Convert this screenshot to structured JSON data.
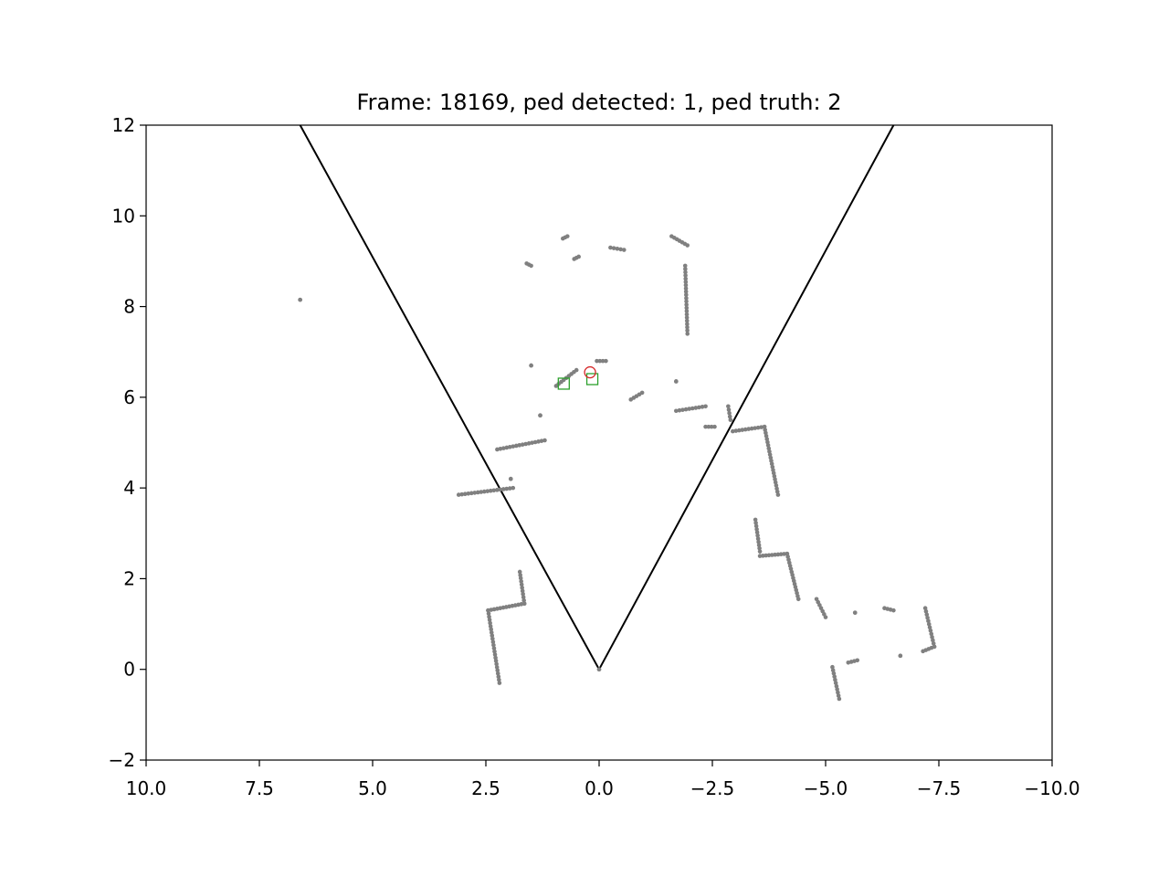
{
  "chart_data": {
    "type": "scatter",
    "title": "Frame: 18169, ped detected: 1, ped truth: 2",
    "xlabel": "",
    "ylabel": "",
    "xlim": [
      10.0,
      -10.0
    ],
    "ylim": [
      -2,
      12
    ],
    "x_ticks": [
      "10.0",
      "7.5",
      "5.0",
      "2.5",
      "0.0",
      "−2.5",
      "−5.0",
      "−7.5",
      "−10.0"
    ],
    "y_ticks": [
      "−2",
      "0",
      "2",
      "4",
      "6",
      "8",
      "10",
      "12"
    ],
    "grid": false,
    "colors": {
      "points": "#808080",
      "fov": "#000000",
      "detected": "#d62728",
      "truth": "#2ca02c"
    },
    "fov_lines": [
      {
        "x": [
          6.6,
          0.0,
          -6.5
        ],
        "y": [
          12,
          0,
          12
        ]
      }
    ],
    "series": [
      {
        "marker": "dot",
        "segments": [
          {
            "x": [
              6.6,
              6.6
            ],
            "y": [
              8.15,
              8.15
            ]
          },
          {
            "x": [
              1.6,
              1.5
            ],
            "y": [
              8.95,
              8.9
            ]
          },
          {
            "x": [
              0.8,
              0.7
            ],
            "y": [
              9.5,
              9.55
            ]
          },
          {
            "x": [
              0.55,
              0.45
            ],
            "y": [
              9.05,
              9.1
            ]
          },
          {
            "x": [
              -0.25,
              -0.55
            ],
            "y": [
              9.3,
              9.25
            ]
          },
          {
            "x": [
              -1.6,
              -1.95
            ],
            "y": [
              9.55,
              9.35
            ]
          },
          {
            "x": [
              -1.9,
              -1.95
            ],
            "y": [
              8.9,
              7.4
            ]
          },
          {
            "x": [
              1.5,
              1.5
            ],
            "y": [
              6.7,
              6.7
            ]
          },
          {
            "x": [
              0.95,
              0.5
            ],
            "y": [
              6.25,
              6.6
            ]
          },
          {
            "x": [
              0.05,
              -0.15
            ],
            "y": [
              6.8,
              6.8
            ]
          },
          {
            "x": [
              -0.7,
              -0.95
            ],
            "y": [
              5.95,
              6.1
            ]
          },
          {
            "x": [
              -1.7,
              -1.7
            ],
            "y": [
              6.35,
              6.35
            ]
          },
          {
            "x": [
              -1.7,
              -2.35
            ],
            "y": [
              5.7,
              5.8
            ]
          },
          {
            "x": [
              -2.35,
              -2.55
            ],
            "y": [
              5.35,
              5.35
            ]
          },
          {
            "x": [
              -2.85,
              -2.9
            ],
            "y": [
              5.8,
              5.5
            ]
          },
          {
            "x": [
              1.3,
              1.3
            ],
            "y": [
              5.6,
              5.6
            ]
          },
          {
            "x": [
              2.25,
              1.2
            ],
            "y": [
              4.85,
              5.05
            ]
          },
          {
            "x": [
              3.1,
              1.9
            ],
            "y": [
              3.85,
              4.0
            ]
          },
          {
            "x": [
              1.95,
              1.95
            ],
            "y": [
              4.2,
              4.2
            ]
          },
          {
            "x": [
              -2.95,
              -3.65
            ],
            "y": [
              5.25,
              5.35
            ]
          },
          {
            "x": [
              -3.65,
              -3.95
            ],
            "y": [
              5.35,
              3.85
            ]
          },
          {
            "x": [
              -3.45,
              -3.55
            ],
            "y": [
              3.3,
              2.6
            ]
          },
          {
            "x": [
              -3.55,
              -4.15
            ],
            "y": [
              2.5,
              2.55
            ]
          },
          {
            "x": [
              -4.15,
              -4.4
            ],
            "y": [
              2.55,
              1.55
            ]
          },
          {
            "x": [
              -4.8,
              -5.0
            ],
            "y": [
              1.55,
              1.15
            ]
          },
          {
            "x": [
              -5.65,
              -5.65
            ],
            "y": [
              1.25,
              1.25
            ]
          },
          {
            "x": [
              -6.3,
              -6.5
            ],
            "y": [
              1.35,
              1.3
            ]
          },
          {
            "x": [
              -7.2,
              -7.4
            ],
            "y": [
              1.35,
              0.5
            ]
          },
          {
            "x": [
              -7.4,
              -7.15
            ],
            "y": [
              0.5,
              0.4
            ]
          },
          {
            "x": [
              -6.65,
              -6.65
            ],
            "y": [
              0.3,
              0.3
            ]
          },
          {
            "x": [
              -5.5,
              -5.7
            ],
            "y": [
              0.15,
              0.2
            ]
          },
          {
            "x": [
              -5.15,
              -5.3
            ],
            "y": [
              0.05,
              -0.65
            ]
          },
          {
            "x": [
              1.75,
              1.65
            ],
            "y": [
              2.15,
              1.45
            ]
          },
          {
            "x": [
              1.65,
              2.45
            ],
            "y": [
              1.45,
              1.3
            ]
          },
          {
            "x": [
              2.45,
              2.2
            ],
            "y": [
              1.3,
              -0.3
            ]
          },
          {
            "x": [
              0.0,
              0.0
            ],
            "y": [
              0.0,
              0.0
            ]
          }
        ]
      }
    ],
    "detected": [
      {
        "x": 0.2,
        "y": 6.55
      }
    ],
    "truth": [
      {
        "x": 0.78,
        "y": 6.3
      },
      {
        "x": 0.15,
        "y": 6.4
      }
    ]
  }
}
